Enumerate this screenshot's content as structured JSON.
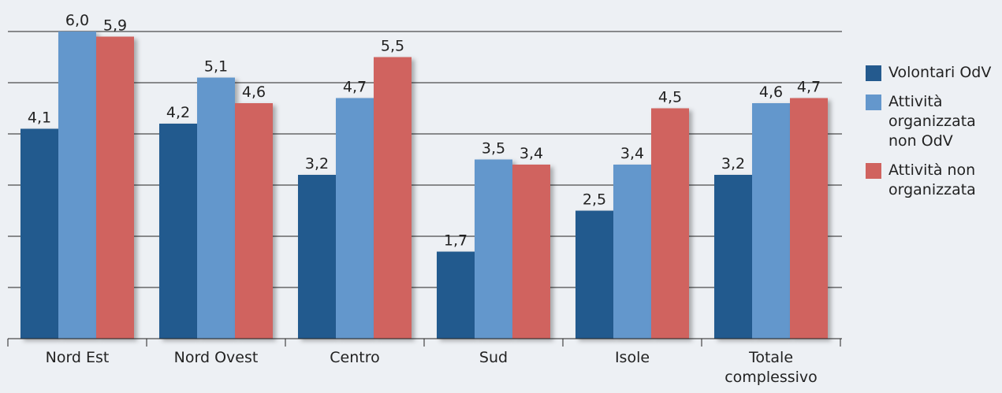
{
  "chart_data": {
    "type": "bar",
    "categories": [
      "Nord Est",
      "Nord Ovest",
      "Centro",
      "Sud",
      "Isole",
      "Totale complessivo"
    ],
    "series": [
      {
        "name": "Volontari OdV",
        "color": "#245a8e",
        "values": [
          4.1,
          4.2,
          3.2,
          1.7,
          2.5,
          3.2
        ],
        "value_labels": [
          "4,1",
          "4,2",
          "3,2",
          "1,7",
          "2,5",
          "3,2"
        ]
      },
      {
        "name": "Attività organizzata non OdV",
        "color": "#6497cc",
        "values": [
          6.0,
          5.1,
          4.7,
          3.5,
          3.4,
          4.6
        ],
        "value_labels": [
          "6,0",
          "5,1",
          "4,7",
          "3,5",
          "3,4",
          "4,6"
        ]
      },
      {
        "name": "Attività non organizzata",
        "color": "#d0635f",
        "values": [
          5.9,
          4.6,
          5.5,
          3.4,
          4.5,
          4.7
        ],
        "value_labels": [
          "5,9",
          "4,6",
          "5,5",
          "3,4",
          "4,5",
          "4,7"
        ]
      }
    ],
    "ylim": [
      0,
      6
    ],
    "yticks": [
      0,
      1,
      2,
      3,
      4,
      5,
      6
    ],
    "grid": true,
    "legend": "right"
  }
}
